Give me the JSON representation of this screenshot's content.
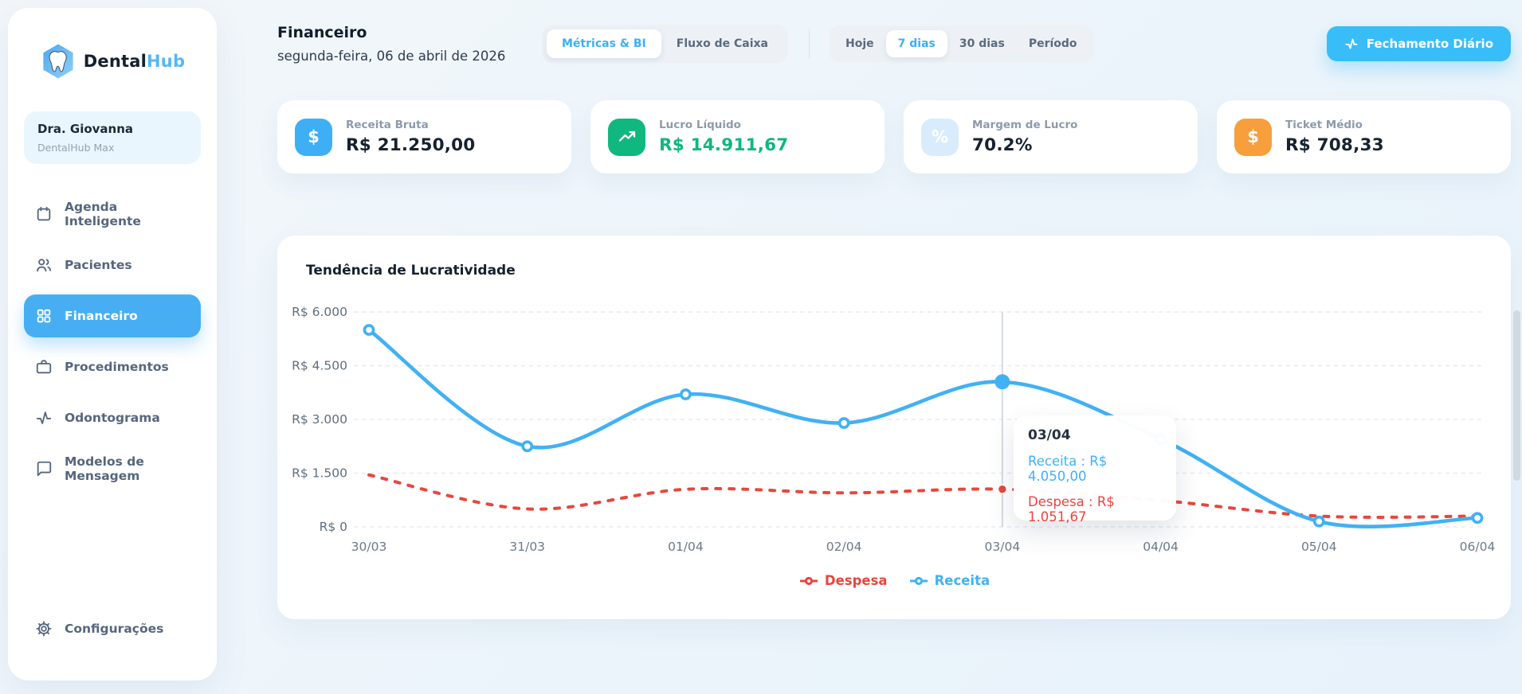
{
  "brand": {
    "name_primary": "Dental",
    "name_secondary": "Hub",
    "logo_icon": "tooth-hexagon",
    "accent": "#47aef3"
  },
  "user_card": {
    "name": "Dra. Giovanna",
    "plan": "DentalHub Max"
  },
  "sidebar": {
    "items": [
      {
        "label": "Agenda Inteligente",
        "icon": "calendar-icon",
        "active": false
      },
      {
        "label": "Pacientes",
        "icon": "users-icon",
        "active": false
      },
      {
        "label": "Financeiro",
        "icon": "grid-icon",
        "active": true
      },
      {
        "label": "Procedimentos",
        "icon": "briefcase-icon",
        "active": false
      },
      {
        "label": "Odontograma",
        "icon": "activity-icon",
        "active": false
      },
      {
        "label": "Modelos de Mensagem",
        "icon": "message-icon",
        "active": false
      }
    ],
    "settings_label": "Configurações"
  },
  "header": {
    "title": "Financeiro",
    "date": "segunda-feira, 06 de abril de 2026",
    "view_tabs": [
      {
        "label": "Métricas & BI",
        "active": true
      },
      {
        "label": "Fluxo de Caixa",
        "active": false
      }
    ],
    "range_tabs": [
      {
        "label": "Hoje",
        "active": false
      },
      {
        "label": "7 dias",
        "active": true
      },
      {
        "label": "30 dias",
        "active": false
      },
      {
        "label": "Período",
        "active": false
      }
    ],
    "action_button": "Fechamento Diário",
    "action_button_color": "#38bdf8"
  },
  "metrics": [
    {
      "label": "Receita Bruta",
      "value": "R$ 21.250,00",
      "icon": "dollar-icon",
      "icon_bg": "#3eaff5"
    },
    {
      "label": "Lucro Líquido",
      "value": "R$ 14.911,67",
      "icon": "trend-up-icon",
      "icon_bg": "#10b77f",
      "value_color": "#10b77f"
    },
    {
      "label": "Margem de Lucro",
      "value": "70.2%",
      "icon": "percent-icon",
      "icon_bg": "#d9ecfc"
    },
    {
      "label": "Ticket Médio",
      "value": "R$ 708,33",
      "icon": "dollar-icon",
      "icon_bg": "#f79e3d"
    }
  ],
  "chart": {
    "title": "Tendência de Lucratividade",
    "legend": [
      {
        "label": "Despesa",
        "color": "#e8463d"
      },
      {
        "label": "Receita",
        "color": "#41b1f5"
      }
    ],
    "tooltip": {
      "title": "03/04",
      "receita_line": "Receita : R$ 4.050,00",
      "despesa_line": "Despesa : R$ 1.051,67"
    }
  },
  "chart_data": {
    "type": "line",
    "title": "Tendência de Lucratividade",
    "x": [
      "30/03",
      "31/03",
      "01/04",
      "02/04",
      "03/04",
      "04/04",
      "05/04",
      "06/04"
    ],
    "series": [
      {
        "name": "Despesa",
        "color": "#e8463d",
        "style": "dashed",
        "show_dots": "active",
        "values": [
          1450,
          500,
          1050,
          950,
          1051.67,
          736.66,
          300,
          300
        ]
      },
      {
        "name": "Receita",
        "color": "#41b1f5",
        "style": "solid",
        "show_dots": "all",
        "values": [
          5500,
          2250,
          3700,
          2900,
          4050,
          2450,
          150,
          250
        ]
      }
    ],
    "ylim": [
      0,
      6000
    ],
    "yticks": [
      0,
      1500,
      3000,
      4500,
      6000
    ],
    "ytick_labels": [
      "R$ 0",
      "R$ 1.500",
      "R$ 3.000",
      "R$ 4.500",
      "R$ 6.000"
    ],
    "grid": "horizontal-dashed",
    "legend_position": "bottom",
    "active_index": 4,
    "active_point": {
      "x": "03/04",
      "receita": 4050.0,
      "despesa": 1051.67
    }
  }
}
